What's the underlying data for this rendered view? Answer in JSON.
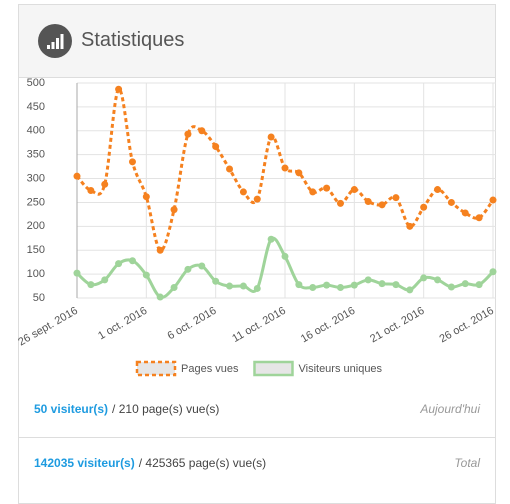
{
  "header": {
    "title": "Statistiques"
  },
  "chart_data": {
    "type": "line",
    "categories": [
      "26 sept. 2016",
      null,
      null,
      null,
      null,
      "1 oct. 2016",
      null,
      null,
      null,
      null,
      "6 oct. 2016",
      null,
      null,
      null,
      null,
      "11 oct. 2016",
      null,
      null,
      null,
      null,
      "16 oct. 2016",
      null,
      null,
      null,
      null,
      "21 oct. 2016",
      null,
      null,
      null,
      null,
      "26 oct. 2016"
    ],
    "series": [
      {
        "name": "Pages vues",
        "color": "#f5811f",
        "dashed": true,
        "values": [
          305,
          275,
          288,
          487,
          335,
          262,
          150,
          235,
          393,
          400,
          367,
          320,
          272,
          257,
          387,
          322,
          312,
          272,
          280,
          248,
          277,
          252,
          245,
          260,
          200,
          240,
          277,
          250,
          228,
          218,
          255
        ]
      },
      {
        "name": "Visiteurs uniques",
        "color": "#9fd49a",
        "dashed": false,
        "values": [
          102,
          78,
          88,
          122,
          128,
          98,
          52,
          72,
          110,
          117,
          85,
          75,
          75,
          70,
          173,
          137,
          78,
          72,
          77,
          72,
          77,
          88,
          80,
          78,
          67,
          92,
          88,
          73,
          80,
          78,
          105
        ]
      }
    ],
    "ylim": [
      50,
      500
    ],
    "yticks": [
      50,
      100,
      150,
      200,
      250,
      300,
      350,
      400,
      450,
      500
    ],
    "grid": true,
    "legend": "bottom"
  },
  "summary": [
    {
      "visitors": "50 visiteur(s)",
      "pages": "/ 210 page(s) vue(s)",
      "period": "Aujourd'hui"
    },
    {
      "visitors": "142035 visiteur(s)",
      "pages": "/ 425365 page(s) vue(s)",
      "period": "Total"
    }
  ]
}
